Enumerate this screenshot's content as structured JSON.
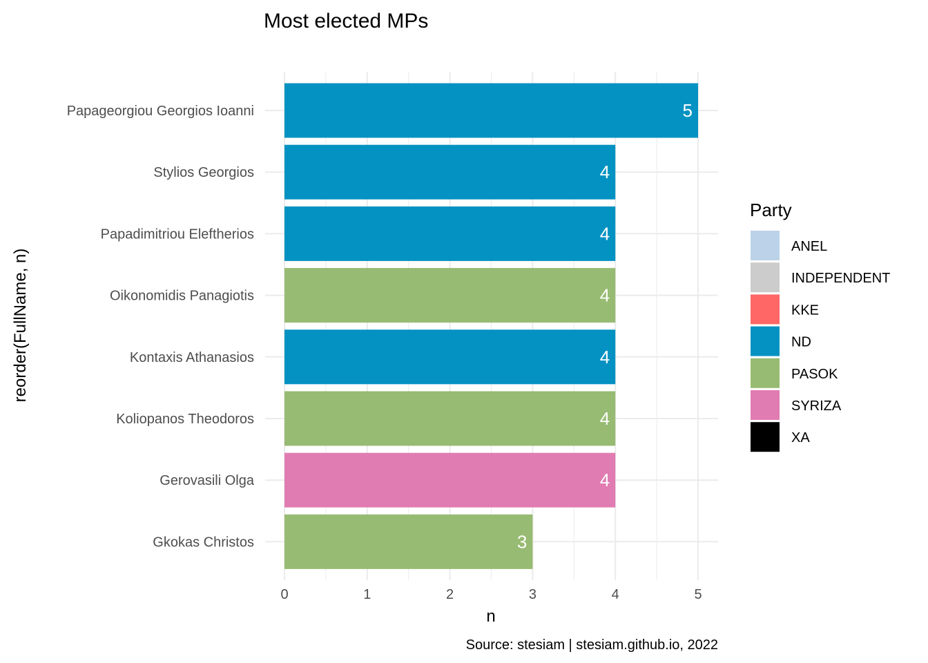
{
  "chart_data": {
    "type": "bar",
    "orientation": "horizontal",
    "title": "Most elected MPs",
    "xlabel": "n",
    "ylabel": "reorder(FullName, n)",
    "caption": "Source: stesiam | stesiam.github.io, 2022",
    "xlim": [
      0,
      5
    ],
    "x_ticks": [
      "0",
      "1",
      "2",
      "3",
      "4",
      "5"
    ],
    "grid": true,
    "legend_position": "right",
    "legend_title": "Party",
    "legend": [
      {
        "name": "ANEL",
        "color": "#BCD2E8"
      },
      {
        "name": "INDEPENDENT",
        "color": "#CCCCCC"
      },
      {
        "name": "KKE",
        "color": "#FF6666"
      },
      {
        "name": "ND",
        "color": "#0492C2"
      },
      {
        "name": "PASOK",
        "color": "#97BB72"
      },
      {
        "name": "SYRIZA",
        "color": "#E17CB2"
      },
      {
        "name": "XA",
        "color": "#000000"
      }
    ],
    "bars": [
      {
        "name": "Papageorgiou Georgios Ioanni",
        "value": 5,
        "party": "ND"
      },
      {
        "name": "Stylios Georgios",
        "value": 4,
        "party": "ND"
      },
      {
        "name": "Papadimitriou Eleftherios",
        "value": 4,
        "party": "ND"
      },
      {
        "name": "Oikonomidis Panagiotis",
        "value": 4,
        "party": "PASOK"
      },
      {
        "name": "Kontaxis Athanasios",
        "value": 4,
        "party": "ND"
      },
      {
        "name": "Koliopanos Theodoros",
        "value": 4,
        "party": "PASOK"
      },
      {
        "name": "Gerovasili Olga",
        "value": 4,
        "party": "SYRIZA"
      },
      {
        "name": "Gkokas Christos",
        "value": 3,
        "party": "PASOK"
      }
    ]
  }
}
